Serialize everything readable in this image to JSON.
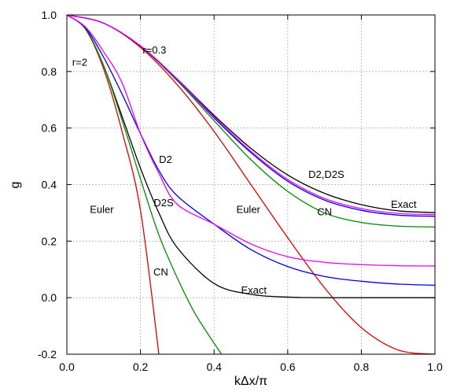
{
  "chart_data": {
    "type": "line",
    "title": "",
    "xlabel": "kΔx/π",
    "ylabel": "g",
    "xlim": [
      0.0,
      1.0
    ],
    "ylim": [
      -0.2,
      1.0
    ],
    "x_ticks": [
      "0.0",
      "0.2",
      "0.4",
      "0.6",
      "0.8",
      "1.0"
    ],
    "y_ticks": [
      "-0.2",
      "0.0",
      "0.2",
      "0.4",
      "0.6",
      "0.8",
      "1.0"
    ],
    "grid": true,
    "colors": {
      "Exact": "#000000",
      "Euler": "#e00000",
      "CN": "#008c00",
      "D2": "#0000ee",
      "D2S": "#ee00ee"
    },
    "series": [
      {
        "group": "r=0.3",
        "color": "#000000",
        "x": [
          0.0,
          0.1,
          0.2,
          0.3,
          0.4,
          0.5,
          0.6,
          0.7,
          0.8,
          0.9,
          1.0
        ],
        "y": [
          1.0,
          0.971,
          0.889,
          0.773,
          0.645,
          0.528,
          0.434,
          0.369,
          0.329,
          0.307,
          0.301
        ]
      },
      {
        "group": "r=0.3",
        "color": "#e00000",
        "x": [
          0.0,
          0.1,
          0.2,
          0.3,
          0.4,
          0.5,
          0.6,
          0.7,
          0.8,
          0.9,
          1.0
        ],
        "y": [
          1.0,
          0.971,
          0.885,
          0.753,
          0.588,
          0.4,
          0.212,
          0.035,
          -0.106,
          -0.185,
          -0.2
        ]
      },
      {
        "group": "r=0.3",
        "color": "#008c00",
        "x": [
          0.0,
          0.1,
          0.2,
          0.3,
          0.4,
          0.5,
          0.6,
          0.7,
          0.8,
          0.9,
          1.0
        ],
        "y": [
          1.0,
          0.971,
          0.889,
          0.767,
          0.626,
          0.488,
          0.376,
          0.3,
          0.266,
          0.253,
          0.25
        ]
      },
      {
        "group": "r=0.3",
        "color": "#0000ee",
        "x": [
          0.0,
          0.1,
          0.2,
          0.3,
          0.4,
          0.5,
          0.6,
          0.7,
          0.8,
          0.9,
          1.0
        ],
        "y": [
          1.0,
          0.971,
          0.89,
          0.771,
          0.636,
          0.513,
          0.412,
          0.345,
          0.309,
          0.292,
          0.288
        ]
      },
      {
        "group": "r=0.3",
        "color": "#ee00ee",
        "x": [
          0.0,
          0.1,
          0.2,
          0.3,
          0.4,
          0.5,
          0.6,
          0.7,
          0.8,
          0.9,
          1.0
        ],
        "y": [
          1.0,
          0.971,
          0.891,
          0.773,
          0.64,
          0.518,
          0.418,
          0.351,
          0.315,
          0.298,
          0.294
        ]
      },
      {
        "group": "r=2",
        "color": "#000000",
        "x": [
          0.0,
          0.05,
          0.1,
          0.15,
          0.2,
          0.25,
          0.3,
          0.4,
          0.5,
          0.6,
          0.7,
          0.8,
          0.9,
          1.0
        ],
        "y": [
          1.0,
          0.952,
          0.82,
          0.641,
          0.458,
          0.3,
          0.177,
          0.05,
          0.012,
          0.002,
          0.0,
          0.0,
          0.0,
          0.0
        ]
      },
      {
        "group": "r=2",
        "color": "#e00000",
        "x": [
          0.0,
          0.05,
          0.1,
          0.15,
          0.2,
          0.25
        ],
        "y": [
          1.0,
          0.951,
          0.809,
          0.588,
          0.309,
          -0.2
        ]
      },
      {
        "group": "r=2",
        "color": "#008c00",
        "x": [
          0.0,
          0.05,
          0.1,
          0.15,
          0.2,
          0.25,
          0.3,
          0.35,
          0.42
        ],
        "y": [
          1.0,
          0.952,
          0.82,
          0.628,
          0.42,
          0.222,
          0.07,
          -0.06,
          -0.2
        ]
      },
      {
        "group": "r=2",
        "color": "#0000ee",
        "x": [
          0.0,
          0.05,
          0.1,
          0.15,
          0.2,
          0.25,
          0.3,
          0.4,
          0.5,
          0.6,
          0.7,
          0.8,
          0.9,
          1.0
        ],
        "y": [
          1.0,
          0.955,
          0.85,
          0.72,
          0.58,
          0.45,
          0.36,
          0.26,
          0.17,
          0.11,
          0.075,
          0.058,
          0.048,
          0.044
        ]
      },
      {
        "group": "r=2",
        "color": "#ee00ee",
        "x": [
          0.0,
          0.05,
          0.1,
          0.15,
          0.2,
          0.25,
          0.3,
          0.4,
          0.5,
          0.6,
          0.7,
          0.8,
          0.9,
          1.0
        ],
        "y": [
          1.0,
          0.958,
          0.87,
          0.76,
          0.58,
          0.44,
          0.33,
          0.26,
          0.19,
          0.145,
          0.125,
          0.117,
          0.113,
          0.112
        ]
      }
    ],
    "annotations": [
      {
        "text": "r=0.3",
        "x": 0.238,
        "y": 0.877
      },
      {
        "text": "r=2",
        "x": 0.035,
        "y": 0.835
      },
      {
        "text": "D2",
        "x": 0.268,
        "y": 0.49
      },
      {
        "text": "D2S",
        "x": 0.263,
        "y": 0.338
      },
      {
        "text": "Euler",
        "x": 0.095,
        "y": 0.313
      },
      {
        "text": "Euler",
        "x": 0.493,
        "y": 0.313
      },
      {
        "text": "CN",
        "x": 0.255,
        "y": 0.093
      },
      {
        "text": "CN",
        "x": 0.7,
        "y": 0.305
      },
      {
        "text": "Exact",
        "x": 0.508,
        "y": 0.028
      },
      {
        "text": "D2,D2S",
        "x": 0.705,
        "y": 0.437
      },
      {
        "text": "Exact",
        "x": 0.915,
        "y": 0.332
      }
    ]
  }
}
